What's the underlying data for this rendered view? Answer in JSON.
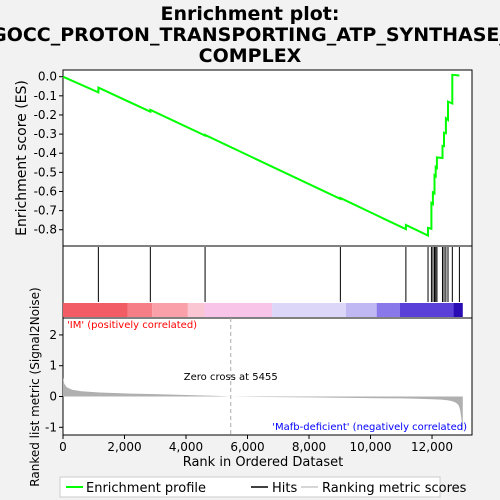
{
  "title_lines": [
    "Enrichment plot:",
    "GOCC_PROTON_TRANSPORTING_ATP_SYNTHASE_",
    "COMPLEX"
  ],
  "colors": {
    "background": "#f2f2f2",
    "panel": "#ffffff",
    "es_line": "#00ff00",
    "hit": "#000000",
    "metric_fill": "#b0b0b0",
    "pos_label": "#ff0000",
    "neg_label": "#0000ff"
  },
  "chart_data": {
    "type": "line",
    "es_panel": {
      "ylabel": "Enrichment score (ES)",
      "yticks": [
        "0.0",
        "-0.1",
        "-0.2",
        "-0.3",
        "-0.4",
        "-0.5",
        "-0.6",
        "-0.7",
        "-0.8"
      ],
      "ylim": [
        -0.885,
        0.035
      ],
      "series": [
        {
          "name": "Enrichment profile",
          "x": [
            0,
            1150,
            1150,
            2840,
            2840,
            4620,
            4620,
            9020,
            9020,
            11150,
            11150,
            11870,
            11870,
            11980,
            11980,
            12030,
            12030,
            12080,
            12080,
            12120,
            12120,
            12160,
            12160,
            12340,
            12340,
            12390,
            12390,
            12450,
            12450,
            12520,
            12520,
            12660,
            12660,
            12890,
            12890
          ],
          "y": [
            0.0,
            -0.082,
            -0.057,
            -0.183,
            -0.173,
            -0.308,
            -0.305,
            -0.639,
            -0.634,
            -0.797,
            -0.775,
            -0.83,
            -0.79,
            -0.795,
            -0.66,
            -0.666,
            -0.605,
            -0.61,
            -0.515,
            -0.52,
            -0.472,
            -0.477,
            -0.422,
            -0.425,
            -0.362,
            -0.363,
            -0.293,
            -0.296,
            -0.217,
            -0.226,
            -0.13,
            -0.14,
            0.01,
            0.006,
            0.006
          ]
        }
      ]
    },
    "hits": {
      "positions": [
        1150,
        2840,
        4620,
        9020,
        11150,
        11870,
        11980,
        12030,
        12080,
        12120,
        12160,
        12340,
        12390,
        12450,
        12520,
        12660,
        12890
      ]
    },
    "heatmap": {
      "segments": [
        {
          "to": 2100,
          "color": "#f25c64"
        },
        {
          "to": 2900,
          "color": "#f67e86"
        },
        {
          "to": 4060,
          "color": "#f9a0a8"
        },
        {
          "to": 4600,
          "color": "#fbc6d3"
        },
        {
          "to": 6800,
          "color": "#f8c5e8"
        },
        {
          "to": 9200,
          "color": "#dcd6f8"
        },
        {
          "to": 10200,
          "color": "#c0b8f2"
        },
        {
          "to": 10950,
          "color": "#8878ea"
        },
        {
          "to": 12700,
          "color": "#5b3fd9"
        },
        {
          "to": 13000,
          "color": "#2a0cb4"
        }
      ]
    },
    "metric_panel": {
      "ylabel": "Ranked list metric (Signal2Noise)",
      "yticks": [
        "2",
        "1",
        "0",
        "-1"
      ],
      "ylim": [
        -1.25,
        2.55
      ],
      "zero_cross_label": "Zero cross at 5455",
      "zero_cross": 5455,
      "pos_label": "'IM' (positively correlated)",
      "neg_label": "'Mafb-deficient' (negatively correlated)",
      "x": [
        0,
        40,
        120,
        300,
        600,
        1200,
        2000,
        3000,
        4000,
        5000,
        5455,
        6000,
        7000,
        8000,
        9000,
        10000,
        11000,
        11500,
        12000,
        12300,
        12500,
        12650,
        12780,
        12860,
        12910,
        12960,
        13000
      ],
      "y": [
        0.62,
        0.42,
        0.3,
        0.22,
        0.17,
        0.13,
        0.1,
        0.08,
        0.05,
        0.02,
        0.0,
        -0.01,
        -0.02,
        -0.03,
        -0.04,
        -0.05,
        -0.06,
        -0.07,
        -0.09,
        -0.1,
        -0.12,
        -0.15,
        -0.2,
        -0.28,
        -0.42,
        -0.75,
        -1.2
      ]
    },
    "xaxis": {
      "label": "Rank in Ordered Dataset",
      "xlim": [
        0,
        13300
      ],
      "ticks": [
        0,
        2000,
        4000,
        6000,
        8000,
        10000,
        12000
      ],
      "tick_labels": [
        "0",
        "2,000",
        "4,000",
        "6,000",
        "8,000",
        "10,000",
        "12,000"
      ]
    },
    "legend": {
      "items": [
        "Enrichment profile",
        "Hits",
        "Ranking metric scores"
      ],
      "placement": "bottom"
    }
  }
}
